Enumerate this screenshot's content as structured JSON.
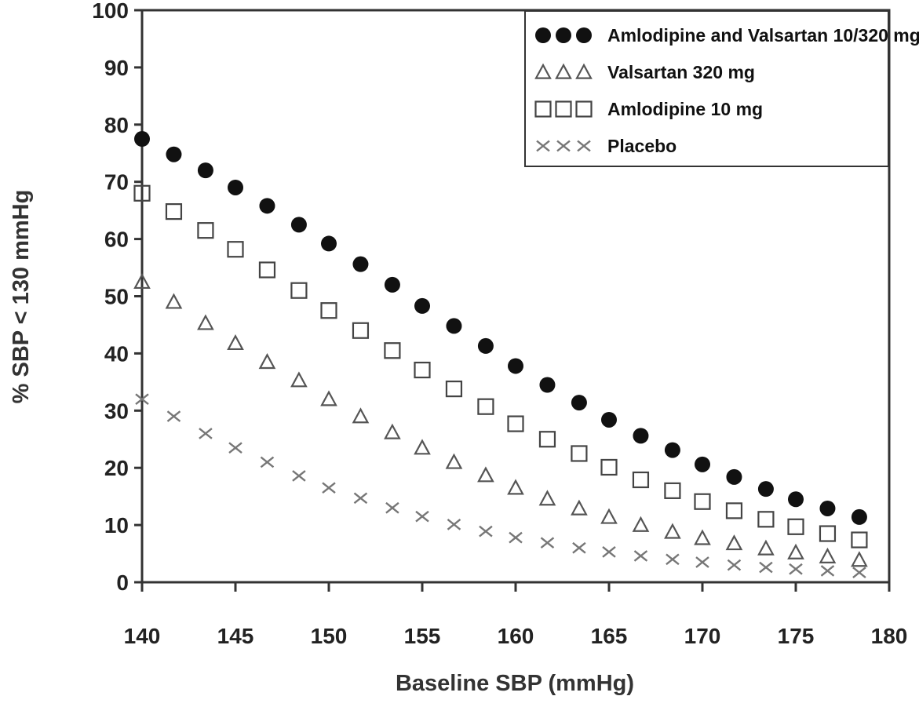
{
  "chart_data": {
    "type": "scatter",
    "title": "",
    "xlabel": "Baseline SBP (mmHg)",
    "ylabel": "% SBP < 130 mmHg",
    "xlim": [
      140,
      180
    ],
    "ylim": [
      0,
      100
    ],
    "xticks": [
      "140",
      "145",
      "150",
      "155",
      "160",
      "165",
      "170",
      "175",
      "180"
    ],
    "yticks": [
      "0",
      "10",
      "20",
      "30",
      "40",
      "50",
      "60",
      "70",
      "80",
      "90",
      "100"
    ],
    "grid": false,
    "legend_position": "top-right",
    "x": [
      140,
      141.7,
      143.4,
      145,
      146.7,
      148.4,
      150,
      151.7,
      153.4,
      155,
      156.7,
      158.4,
      160,
      161.7,
      163.4,
      165,
      166.7,
      168.4,
      170,
      171.7,
      173.4,
      175,
      176.7,
      178.4
    ],
    "series": [
      {
        "name": "Amlodipine and Valsartan 10/320 mg",
        "marker": "filled-circle",
        "color": "#111111",
        "values": [
          77.5,
          74.8,
          72,
          69,
          65.8,
          62.5,
          59.2,
          55.6,
          52,
          48.3,
          44.8,
          41.3,
          37.8,
          34.5,
          31.4,
          28.4,
          25.6,
          23.1,
          20.6,
          18.4,
          16.3,
          14.5,
          12.9,
          11.4
        ]
      },
      {
        "name": "Valsartan 320 mg",
        "marker": "open-triangle",
        "color": "#555555",
        "values": [
          52.5,
          49,
          45.3,
          41.8,
          38.5,
          35.3,
          32,
          29,
          26.2,
          23.5,
          21,
          18.7,
          16.5,
          14.6,
          12.9,
          11.4,
          10,
          8.8,
          7.7,
          6.8,
          5.9,
          5.2,
          4.5,
          3.9
        ]
      },
      {
        "name": "Amlodipine 10 mg",
        "marker": "open-square",
        "color": "#444444",
        "values": [
          68,
          64.8,
          61.5,
          58.2,
          54.6,
          51,
          47.5,
          44,
          40.5,
          37.1,
          33.8,
          30.7,
          27.7,
          25,
          22.5,
          20.1,
          17.9,
          16,
          14.1,
          12.5,
          11,
          9.7,
          8.5,
          7.4
        ]
      },
      {
        "name": "Placebo",
        "marker": "x",
        "color": "#777777",
        "values": [
          32,
          29,
          26,
          23.5,
          21,
          18.6,
          16.5,
          14.7,
          13,
          11.5,
          10.1,
          8.9,
          7.8,
          6.9,
          6,
          5.3,
          4.6,
          4,
          3.5,
          3,
          2.6,
          2.3,
          2,
          1.7
        ]
      }
    ]
  }
}
